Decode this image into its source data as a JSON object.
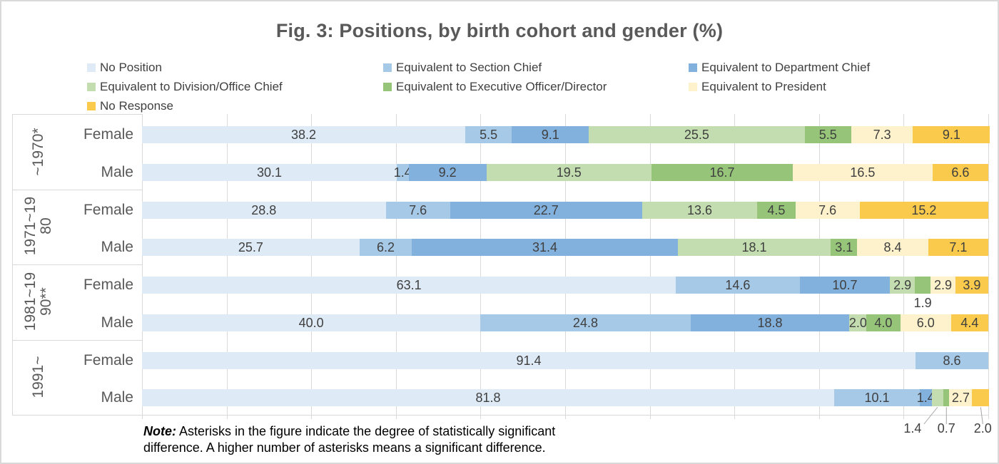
{
  "title": "Fig. 3: Positions, by birth cohort and gender (%)",
  "chart_data": {
    "type": "bar",
    "orientation": "horizontal-stacked",
    "title": "Fig. 3: Positions, by birth cohort and gender (%)",
    "xlim": [
      0,
      100
    ],
    "gridline_step": 10,
    "grid": true,
    "legend_position": "top",
    "series": [
      {
        "name": "No Position",
        "color": "#DEEAF6"
      },
      {
        "name": "Equivalent to Section Chief",
        "color": "#A6C9E8"
      },
      {
        "name": "Equivalent to Department Chief",
        "color": "#83B1DD"
      },
      {
        "name": "Equivalent to Division/Office Chief",
        "color": "#C3DDB0"
      },
      {
        "name": "Equivalent to Executive Officer/Director",
        "color": "#96C579"
      },
      {
        "name": "Equivalent to President",
        "color": "#FDF2CC"
      },
      {
        "name": "No Response",
        "color": "#F9CA4B"
      }
    ],
    "groups": [
      {
        "cohort": "~1970*",
        "rows": [
          {
            "gender": "Female",
            "values": [
              38.2,
              5.5,
              9.1,
              25.5,
              5.5,
              7.3,
              9.1
            ]
          },
          {
            "gender": "Male",
            "values": [
              30.1,
              1.4,
              9.2,
              19.5,
              16.7,
              16.5,
              6.6
            ]
          }
        ]
      },
      {
        "cohort": "1971~1980",
        "rows": [
          {
            "gender": "Female",
            "values": [
              28.8,
              7.6,
              22.7,
              13.6,
              4.5,
              7.6,
              15.2
            ]
          },
          {
            "gender": "Male",
            "values": [
              25.7,
              6.2,
              31.4,
              18.1,
              3.1,
              8.4,
              7.1
            ]
          }
        ]
      },
      {
        "cohort": "1981~1990**",
        "rows": [
          {
            "gender": "Female",
            "values": [
              63.1,
              14.6,
              10.7,
              2.9,
              1.9,
              2.9,
              3.9
            ]
          },
          {
            "gender": "Male",
            "values": [
              40.0,
              24.8,
              18.8,
              2.0,
              4.0,
              6.0,
              4.4
            ]
          }
        ]
      },
      {
        "cohort": "1991~",
        "rows": [
          {
            "gender": "Female",
            "values": [
              91.4,
              8.6,
              0,
              0,
              0,
              0,
              0
            ]
          },
          {
            "gender": "Male",
            "values": [
              81.8,
              10.1,
              1.4,
              1.4,
              0.7,
              2.7,
              2.0
            ]
          }
        ]
      }
    ],
    "callout_labels": [
      {
        "group": 2,
        "row": 0,
        "series": 4,
        "label": "1.9",
        "placement": "below-bar"
      },
      {
        "group": 3,
        "row": 1,
        "series": 3,
        "label": "1.4",
        "placement": "below-axis"
      },
      {
        "group": 3,
        "row": 1,
        "series": 4,
        "label": "0.7",
        "placement": "below-axis"
      },
      {
        "group": 3,
        "row": 1,
        "series": 6,
        "label": "2.0",
        "placement": "below-axis"
      }
    ]
  },
  "note": {
    "prefix": "Note:",
    "line1": " Asterisks in the figure indicate the degree of statistically significant",
    "line2": "difference. A higher number of asterisks means a significant difference."
  },
  "colors": {
    "gridline": "#D9D9D9",
    "axis": "#D9D9D9",
    "leader_line": "#A6A6A6",
    "title_text": "#595959",
    "label_text": "#3F3F3F"
  }
}
